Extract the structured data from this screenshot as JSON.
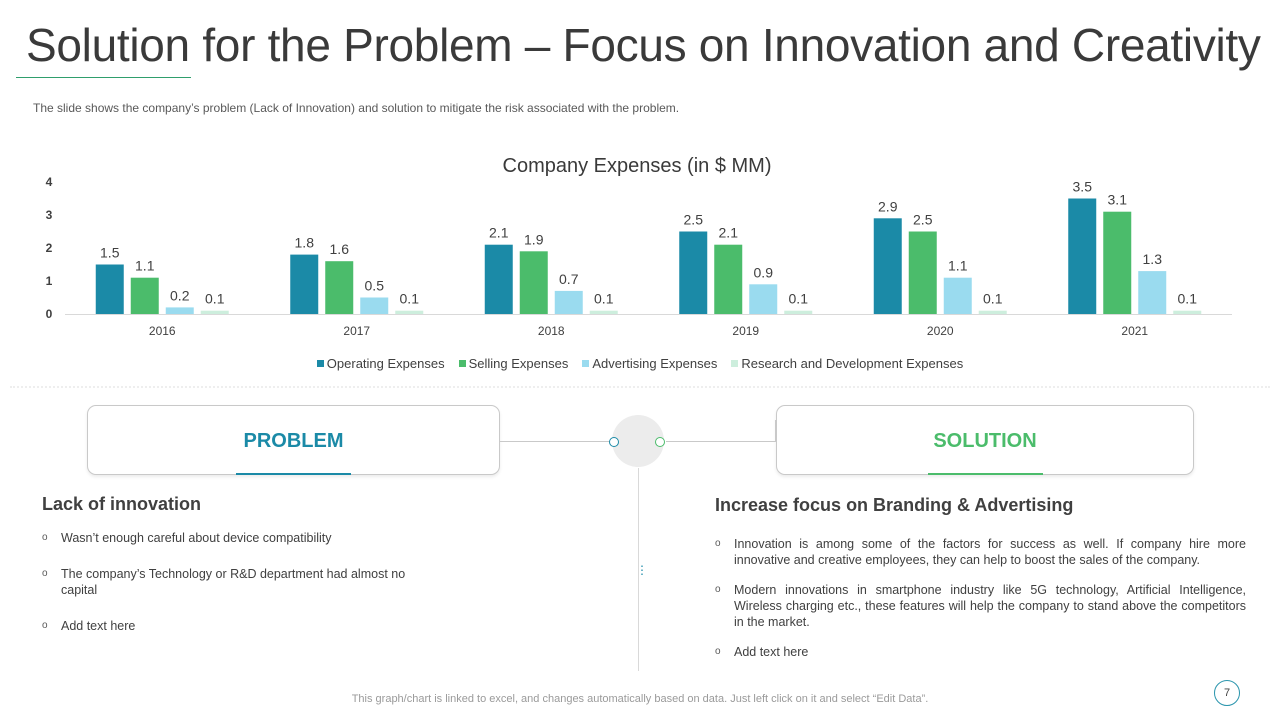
{
  "slide": {
    "title": "Solution for the Problem – Focus on Innovation and Creativity",
    "subtitle": "The slide shows the company’s problem (Lack of Innovation)  and solution to mitigate the risk associated with the problem.",
    "footer": "This graph/chart is linked to excel, and changes automatically based on data. Just left click on it and select “Edit Data”.",
    "page_number": "7"
  },
  "colors": {
    "operating": "#1b8aa7",
    "selling": "#4bbc6b",
    "advertising": "#9adbef",
    "rnd": "#cdeedd",
    "problem_accent": "#1b8aa7",
    "solution_accent": "#4bbc6b"
  },
  "chart_data": {
    "type": "bar",
    "title": "Company  Expenses  (in $ MM)",
    "categories": [
      "2016",
      "2017",
      "2018",
      "2019",
      "2020",
      "2021"
    ],
    "series": [
      {
        "name": "Operating Expenses",
        "values": [
          1.5,
          1.8,
          2.1,
          2.5,
          2.9,
          3.5
        ]
      },
      {
        "name": "Selling Expenses",
        "values": [
          1.1,
          1.6,
          1.9,
          2.1,
          2.5,
          3.1
        ]
      },
      {
        "name": "Advertising Expenses",
        "values": [
          0.2,
          0.5,
          0.7,
          0.9,
          1.1,
          1.3
        ]
      },
      {
        "name": "Research and Development Expenses",
        "values": [
          0.1,
          0.1,
          0.1,
          0.1,
          0.1,
          0.1
        ]
      }
    ],
    "yticks": [
      "0",
      "1",
      "2",
      "3",
      "4"
    ],
    "ylim": [
      0,
      4
    ],
    "grid": false,
    "legend_position": "bottom"
  },
  "problem": {
    "label": "PROBLEM",
    "heading": "Lack of innovation",
    "bullets": [
      "Wasn’t enough careful about device compatibility",
      "The company’s Technology or R&D department had almost no capital",
      "Add text here"
    ]
  },
  "solution": {
    "label": "SOLUTION",
    "heading": "Increase focus on Branding & Advertising",
    "bullets": [
      "Innovation is among some of the factors for success as well. If company hire more innovative  and creative employees, they can help to boost the sales of the company.",
      "Modern innovations in smartphone industry like 5G technology, Artificial Intelligence, Wireless charging etc., these features will help the company to stand above the competitors in the market.",
      "Add text here"
    ]
  }
}
